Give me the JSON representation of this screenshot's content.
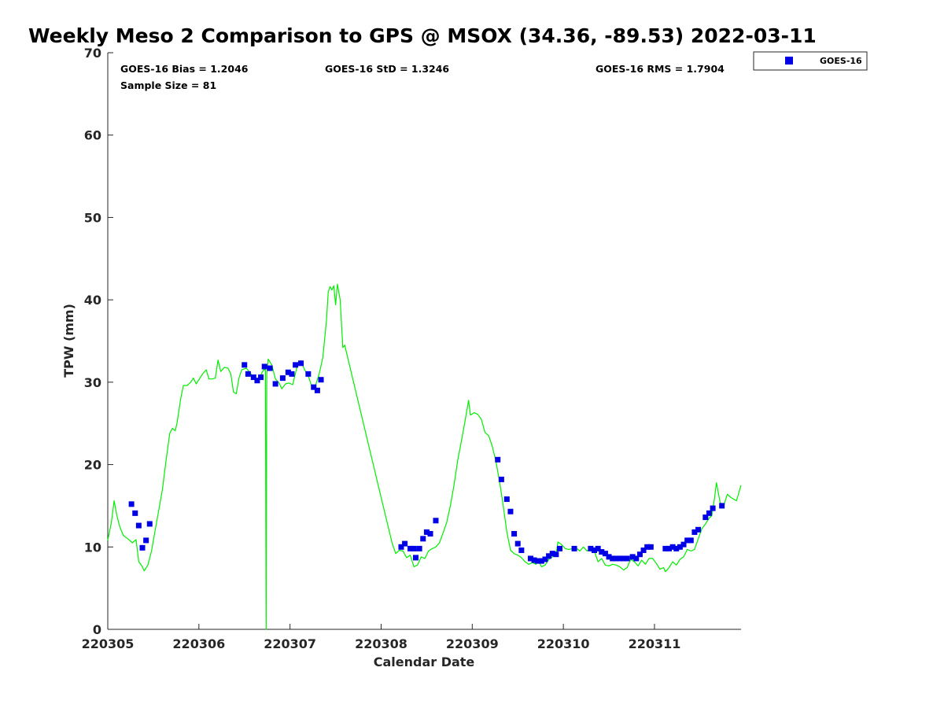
{
  "chart_data": {
    "type": "scatter",
    "title": "Weekly Meso 2 Comparison to GPS @ MSOX (34.36, -89.53) 2022-03-11",
    "xlabel": "Calendar Date",
    "ylabel": "TPW (mm)",
    "xlim": [
      0,
      6.95
    ],
    "ylim": [
      0,
      70
    ],
    "yticks": [
      0,
      10,
      20,
      30,
      40,
      50,
      60,
      70
    ],
    "xticks": [
      {
        "value": 0,
        "label": "220305"
      },
      {
        "value": 1,
        "label": "220306"
      },
      {
        "value": 2,
        "label": "220307"
      },
      {
        "value": 3,
        "label": "220308"
      },
      {
        "value": 4,
        "label": "220309"
      },
      {
        "value": 5,
        "label": "220310"
      },
      {
        "value": 6,
        "label": "220311"
      }
    ],
    "grid": false,
    "legend_position": "outside-top-right",
    "stats": {
      "bias": "GOES-16 Bias = 1.2046",
      "std": "GOES-16 StD = 1.3246",
      "rms": "GOES-16 RMS = 1.7904",
      "sample": "Sample Size = 81"
    },
    "series": [
      {
        "name": "GOES-16",
        "kind": "scatter",
        "color": "#0000e6",
        "marker": "square",
        "points": [
          [
            0.26,
            15.2
          ],
          [
            0.3,
            14.1
          ],
          [
            0.34,
            12.6
          ],
          [
            0.38,
            9.9
          ],
          [
            0.42,
            10.8
          ],
          [
            0.46,
            12.8
          ],
          [
            1.5,
            32.1
          ],
          [
            1.54,
            31.0
          ],
          [
            1.6,
            30.6
          ],
          [
            1.64,
            30.2
          ],
          [
            1.68,
            30.6
          ],
          [
            1.72,
            31.9
          ],
          [
            1.78,
            31.7
          ],
          [
            1.84,
            29.8
          ],
          [
            1.92,
            30.5
          ],
          [
            1.98,
            31.2
          ],
          [
            2.02,
            31.0
          ],
          [
            2.06,
            32.1
          ],
          [
            2.12,
            32.3
          ],
          [
            2.2,
            31.0
          ],
          [
            2.26,
            29.4
          ],
          [
            2.3,
            29.0
          ],
          [
            2.34,
            30.3
          ],
          [
            3.22,
            10.0
          ],
          [
            3.26,
            10.4
          ],
          [
            3.32,
            9.8
          ],
          [
            3.36,
            9.8
          ],
          [
            3.38,
            8.7
          ],
          [
            3.42,
            9.8
          ],
          [
            3.46,
            11.0
          ],
          [
            3.5,
            11.8
          ],
          [
            3.54,
            11.6
          ],
          [
            3.6,
            13.2
          ],
          [
            4.28,
            20.6
          ],
          [
            4.32,
            18.2
          ],
          [
            4.38,
            15.8
          ],
          [
            4.42,
            14.3
          ],
          [
            4.46,
            11.6
          ],
          [
            4.5,
            10.4
          ],
          [
            4.54,
            9.6
          ],
          [
            4.64,
            8.6
          ],
          [
            4.68,
            8.4
          ],
          [
            4.72,
            8.3
          ],
          [
            4.76,
            8.3
          ],
          [
            4.8,
            8.5
          ],
          [
            4.84,
            8.9
          ],
          [
            4.88,
            9.2
          ],
          [
            4.92,
            9.1
          ],
          [
            4.96,
            9.8
          ],
          [
            5.12,
            9.8
          ],
          [
            5.3,
            9.8
          ],
          [
            5.34,
            9.6
          ],
          [
            5.38,
            9.8
          ],
          [
            5.42,
            9.4
          ],
          [
            5.46,
            9.2
          ],
          [
            5.5,
            8.8
          ],
          [
            5.54,
            8.6
          ],
          [
            5.58,
            8.6
          ],
          [
            5.62,
            8.6
          ],
          [
            5.66,
            8.6
          ],
          [
            5.7,
            8.6
          ],
          [
            5.76,
            8.8
          ],
          [
            5.8,
            8.6
          ],
          [
            5.84,
            9.1
          ],
          [
            5.88,
            9.6
          ],
          [
            5.92,
            10.0
          ],
          [
            5.96,
            10.0
          ],
          [
            6.12,
            9.8
          ],
          [
            6.16,
            9.8
          ],
          [
            6.2,
            10.0
          ],
          [
            6.24,
            9.8
          ],
          [
            6.28,
            10.0
          ],
          [
            6.32,
            10.3
          ],
          [
            6.36,
            10.8
          ],
          [
            6.4,
            10.8
          ],
          [
            6.44,
            11.8
          ],
          [
            6.48,
            12.1
          ],
          [
            6.56,
            13.6
          ],
          [
            6.6,
            14.1
          ],
          [
            6.64,
            14.7
          ],
          [
            6.74,
            15.0
          ]
        ]
      },
      {
        "name": "",
        "kind": "line",
        "color": "#00ee00",
        "points": [
          [
            0.0,
            10.8
          ],
          [
            0.04,
            13.0
          ],
          [
            0.07,
            15.6
          ],
          [
            0.1,
            13.8
          ],
          [
            0.13,
            12.5
          ],
          [
            0.17,
            11.4
          ],
          [
            0.22,
            11.0
          ],
          [
            0.27,
            10.5
          ],
          [
            0.31,
            10.9
          ],
          [
            0.34,
            8.2
          ],
          [
            0.38,
            7.6
          ],
          [
            0.4,
            7.1
          ],
          [
            0.44,
            7.8
          ],
          [
            0.48,
            9.5
          ],
          [
            0.52,
            12.0
          ],
          [
            0.56,
            14.5
          ],
          [
            0.6,
            17.0
          ],
          [
            0.64,
            20.5
          ],
          [
            0.68,
            23.8
          ],
          [
            0.71,
            24.4
          ],
          [
            0.74,
            24.1
          ],
          [
            0.76,
            25.0
          ],
          [
            0.8,
            28.0
          ],
          [
            0.83,
            29.6
          ],
          [
            0.87,
            29.6
          ],
          [
            0.91,
            30.0
          ],
          [
            0.94,
            30.5
          ],
          [
            0.97,
            29.8
          ],
          [
            1.0,
            30.3
          ],
          [
            1.04,
            31.0
          ],
          [
            1.08,
            31.5
          ],
          [
            1.11,
            30.4
          ],
          [
            1.15,
            30.4
          ],
          [
            1.18,
            30.5
          ],
          [
            1.21,
            32.7
          ],
          [
            1.24,
            31.3
          ],
          [
            1.28,
            31.8
          ],
          [
            1.32,
            31.7
          ],
          [
            1.35,
            31.0
          ],
          [
            1.38,
            28.8
          ],
          [
            1.41,
            28.6
          ],
          [
            1.44,
            30.5
          ],
          [
            1.47,
            31.5
          ],
          [
            1.52,
            31.7
          ],
          [
            1.56,
            31.2
          ],
          [
            1.6,
            30.5
          ],
          [
            1.64,
            30.4
          ],
          [
            1.68,
            30.9
          ],
          [
            1.71,
            31.5
          ],
          [
            1.73,
            31.5
          ],
          [
            1.738,
            0.0
          ],
          [
            1.745,
            31.0
          ],
          [
            1.76,
            32.8
          ],
          [
            1.8,
            32.1
          ],
          [
            1.84,
            30.4
          ],
          [
            1.88,
            29.9
          ],
          [
            1.91,
            29.2
          ],
          [
            1.95,
            29.8
          ],
          [
            1.99,
            29.9
          ],
          [
            2.03,
            29.7
          ],
          [
            2.08,
            32.0
          ],
          [
            2.12,
            32.6
          ],
          [
            2.16,
            31.5
          ],
          [
            2.2,
            30.8
          ],
          [
            2.24,
            29.4
          ],
          [
            2.28,
            29.6
          ],
          [
            2.32,
            31.0
          ],
          [
            2.36,
            33.0
          ],
          [
            2.4,
            37.5
          ],
          [
            2.42,
            41.0
          ],
          [
            2.44,
            41.6
          ],
          [
            2.46,
            41.2
          ],
          [
            2.48,
            41.7
          ],
          [
            2.5,
            39.4
          ],
          [
            2.52,
            41.9
          ],
          [
            2.55,
            40.0
          ],
          [
            2.58,
            34.2
          ],
          [
            2.6,
            34.5
          ],
          [
            3.0,
            16.0
          ],
          [
            3.12,
            10.5
          ],
          [
            3.16,
            9.2
          ],
          [
            3.2,
            9.6
          ],
          [
            3.24,
            9.5
          ],
          [
            3.28,
            8.7
          ],
          [
            3.32,
            9.0
          ],
          [
            3.36,
            7.6
          ],
          [
            3.4,
            7.8
          ],
          [
            3.44,
            8.8
          ],
          [
            3.48,
            8.6
          ],
          [
            3.52,
            9.5
          ],
          [
            3.56,
            9.8
          ],
          [
            3.6,
            10.0
          ],
          [
            3.64,
            10.5
          ],
          [
            3.68,
            11.7
          ],
          [
            3.72,
            13.0
          ],
          [
            3.76,
            15.0
          ],
          [
            3.8,
            17.5
          ],
          [
            3.84,
            20.5
          ],
          [
            3.88,
            22.8
          ],
          [
            3.92,
            25.2
          ],
          [
            3.96,
            27.8
          ],
          [
            3.98,
            26.0
          ],
          [
            4.02,
            26.3
          ],
          [
            4.06,
            26.1
          ],
          [
            4.1,
            25.5
          ],
          [
            4.14,
            23.9
          ],
          [
            4.18,
            23.5
          ],
          [
            4.22,
            22.2
          ],
          [
            4.26,
            20.4
          ],
          [
            4.3,
            17.9
          ],
          [
            4.34,
            15.0
          ],
          [
            4.38,
            11.8
          ],
          [
            4.42,
            9.6
          ],
          [
            4.46,
            9.2
          ],
          [
            4.5,
            9.0
          ],
          [
            4.54,
            8.7
          ],
          [
            4.58,
            8.2
          ],
          [
            4.62,
            7.9
          ],
          [
            4.66,
            8.1
          ],
          [
            4.7,
            7.9
          ],
          [
            4.72,
            8.5
          ],
          [
            4.76,
            7.6
          ],
          [
            4.8,
            7.8
          ],
          [
            4.84,
            8.5
          ],
          [
            4.88,
            8.8
          ],
          [
            4.92,
            9.1
          ],
          [
            4.94,
            10.6
          ],
          [
            4.98,
            10.3
          ],
          [
            5.02,
            9.8
          ],
          [
            5.06,
            9.7
          ],
          [
            5.1,
            9.8
          ],
          [
            5.14,
            9.9
          ],
          [
            5.18,
            9.5
          ],
          [
            5.22,
            10.0
          ],
          [
            5.26,
            9.5
          ],
          [
            5.3,
            9.9
          ],
          [
            5.34,
            9.5
          ],
          [
            5.38,
            8.2
          ],
          [
            5.42,
            8.6
          ],
          [
            5.46,
            7.8
          ],
          [
            5.5,
            7.7
          ],
          [
            5.54,
            7.9
          ],
          [
            5.58,
            7.8
          ],
          [
            5.62,
            7.6
          ],
          [
            5.66,
            7.2
          ],
          [
            5.7,
            7.5
          ],
          [
            5.74,
            8.5
          ],
          [
            5.78,
            8.2
          ],
          [
            5.82,
            7.7
          ],
          [
            5.86,
            8.4
          ],
          [
            5.9,
            7.9
          ],
          [
            5.94,
            8.6
          ],
          [
            5.98,
            8.6
          ],
          [
            6.02,
            8.0
          ],
          [
            6.06,
            7.3
          ],
          [
            6.1,
            7.5
          ],
          [
            6.12,
            7.0
          ],
          [
            6.16,
            7.5
          ],
          [
            6.2,
            8.2
          ],
          [
            6.24,
            7.8
          ],
          [
            6.28,
            8.5
          ],
          [
            6.32,
            8.8
          ],
          [
            6.36,
            9.7
          ],
          [
            6.4,
            9.5
          ],
          [
            6.44,
            9.7
          ],
          [
            6.48,
            11.0
          ],
          [
            6.52,
            12.2
          ],
          [
            6.56,
            12.8
          ],
          [
            6.6,
            13.5
          ],
          [
            6.63,
            13.8
          ],
          [
            6.66,
            16.0
          ],
          [
            6.68,
            17.8
          ],
          [
            6.72,
            15.4
          ],
          [
            6.76,
            15.0
          ],
          [
            6.8,
            16.4
          ],
          [
            6.84,
            16.0
          ],
          [
            6.9,
            15.6
          ],
          [
            6.95,
            17.5
          ]
        ]
      }
    ]
  }
}
